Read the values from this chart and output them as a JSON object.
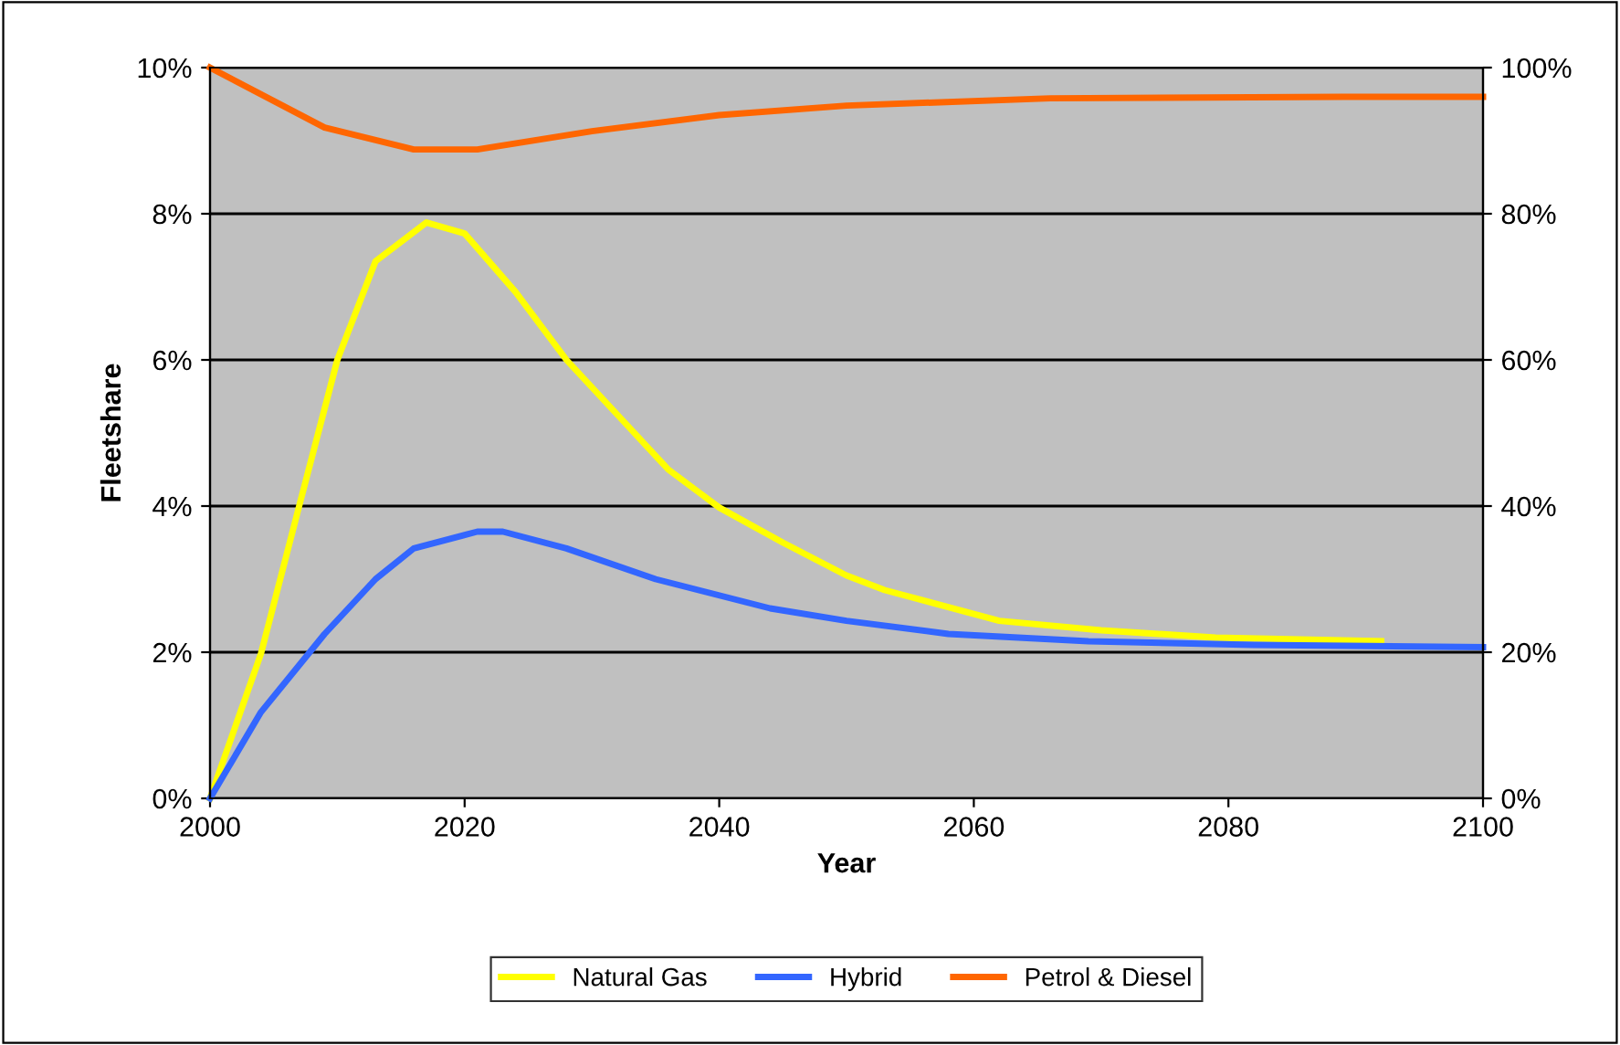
{
  "chart_data": {
    "type": "line",
    "xlabel": "Year",
    "ylabel": "Fleetshare",
    "xlim": [
      2000,
      2100
    ],
    "xticks": [
      2000,
      2020,
      2040,
      2060,
      2080,
      2100
    ],
    "ylim": [
      0,
      10
    ],
    "yticks": [
      {
        "value": 0,
        "label": "0%"
      },
      {
        "value": 2,
        "label": "2%"
      },
      {
        "value": 4,
        "label": "4%"
      },
      {
        "value": 6,
        "label": "6%"
      },
      {
        "value": 8,
        "label": "8%"
      },
      {
        "value": 10,
        "label": "10%"
      }
    ],
    "y2lim": [
      0,
      100
    ],
    "y2ticks": [
      {
        "value": 0,
        "label": "0%"
      },
      {
        "value": 20,
        "label": "20%"
      },
      {
        "value": 40,
        "label": "40%"
      },
      {
        "value": 60,
        "label": "60%"
      },
      {
        "value": 80,
        "label": "80%"
      },
      {
        "value": 100,
        "label": "100%"
      }
    ],
    "grid": "y",
    "legend": "bottom",
    "marker": "none",
    "line_style": "solid",
    "series": [
      {
        "name": "Natural Gas",
        "color": "#ffff00",
        "x": [
          2000,
          2004,
          2007,
          2010,
          2013,
          2017,
          2020,
          2024,
          2028,
          2032,
          2036,
          2040,
          2045,
          2050,
          2053,
          2062,
          2070,
          2079,
          2092
        ],
        "values": [
          0,
          1.98,
          4.0,
          6.0,
          7.35,
          7.88,
          7.73,
          6.93,
          6.0,
          5.25,
          4.5,
          3.98,
          3.5,
          3.05,
          2.85,
          2.43,
          2.3,
          2.2,
          2.15
        ]
      },
      {
        "name": "Hybrid",
        "color": "#3366ff",
        "x": [
          2000,
          2004,
          2009,
          2013,
          2016,
          2021,
          2023,
          2028,
          2035,
          2044,
          2050,
          2058,
          2069,
          2082,
          2100
        ],
        "values": [
          0,
          1.18,
          2.25,
          3.0,
          3.42,
          3.65,
          3.65,
          3.42,
          3.0,
          2.6,
          2.43,
          2.25,
          2.15,
          2.1,
          2.07
        ]
      },
      {
        "name": "Petrol & Diesel",
        "color": "#ff6600",
        "axis": "y2",
        "x": [
          2000,
          2009,
          2016,
          2021,
          2030,
          2040,
          2050,
          2066,
          2089,
          2100
        ],
        "values": [
          100,
          91.8,
          88.8,
          88.8,
          91.3,
          93.5,
          94.8,
          95.8,
          96,
          96
        ]
      }
    ]
  }
}
